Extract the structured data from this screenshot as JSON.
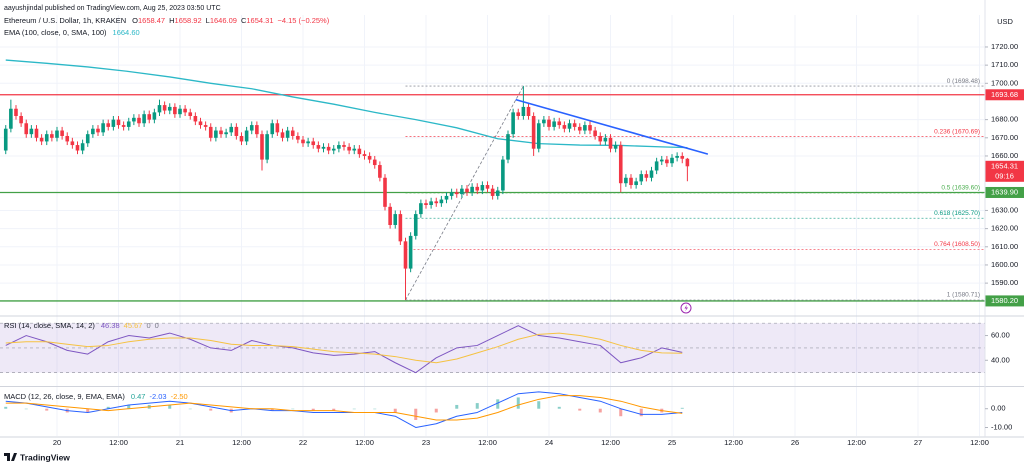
{
  "header": {
    "published": "aayushjindal published on TradingView.com, Aug 25, 2023 03:50 UTC",
    "symbol": "Ethereum / U.S. Dollar, 1h, KRAKEN",
    "ohlc_labels": [
      "O",
      "H",
      "L",
      "C"
    ],
    "change": "−4.15 (−0.25%)"
  },
  "footer": {
    "brand": "TradingView"
  },
  "chart_data": [
    {
      "type": "candlestick",
      "currency": "USD",
      "up_color": "#089981",
      "down_color": "#f23645",
      "grid": true,
      "xlim": [
        -11.12,
        181.07
      ],
      "ylim": [
        1572.45,
        1737.6
      ],
      "xticks": [
        {
          "value": 0,
          "label": "20"
        },
        {
          "value": 12,
          "label": "12:00"
        },
        {
          "value": 24,
          "label": "21"
        },
        {
          "value": 36,
          "label": "12:00"
        },
        {
          "value": 48,
          "label": "22"
        },
        {
          "value": 60,
          "label": "12:00"
        },
        {
          "value": 72,
          "label": "23"
        },
        {
          "value": 84,
          "label": "12:00"
        },
        {
          "value": 96,
          "label": "24"
        },
        {
          "value": 108,
          "label": "12:00"
        },
        {
          "value": 120,
          "label": "25"
        },
        {
          "value": 132,
          "label": "12:00"
        },
        {
          "value": 144,
          "label": "26"
        },
        {
          "value": 156,
          "label": "12:00"
        },
        {
          "value": 168,
          "label": "27"
        },
        {
          "value": 180,
          "label": "12:00"
        }
      ],
      "yticks": [
        {
          "value": 1720,
          "label": "1720.00"
        },
        {
          "value": 1710,
          "label": "1710.00"
        },
        {
          "value": 1700,
          "label": "1700.00"
        },
        {
          "value": 1680,
          "label": "1680.00"
        },
        {
          "value": 1670,
          "label": "1670.00"
        },
        {
          "value": 1660,
          "label": "1660.00"
        },
        {
          "value": 1630,
          "label": "1630.00"
        },
        {
          "value": 1620,
          "label": "1620.00"
        },
        {
          "value": 1610,
          "label": "1610.00"
        },
        {
          "value": 1600,
          "label": "1600.00"
        },
        {
          "value": 1590,
          "label": "1590.00"
        }
      ],
      "x": [
        -10,
        -9,
        -8,
        -7,
        -6,
        -5,
        -4,
        -3,
        -2,
        -1,
        0,
        1,
        2,
        3,
        4,
        5,
        6,
        7,
        8,
        9,
        10,
        11,
        12,
        13,
        14,
        15,
        16,
        17,
        18,
        19,
        20,
        21,
        22,
        23,
        24,
        25,
        26,
        27,
        28,
        29,
        30,
        31,
        32,
        33,
        34,
        35,
        36,
        37,
        38,
        39,
        40,
        41,
        42,
        43,
        44,
        45,
        46,
        47,
        48,
        49,
        50,
        51,
        52,
        53,
        54,
        55,
        56,
        57,
        58,
        59,
        60,
        61,
        62,
        63,
        64,
        65,
        66,
        67,
        68,
        69,
        70,
        71,
        72,
        73,
        74,
        75,
        76,
        77,
        78,
        79,
        80,
        81,
        82,
        83,
        84,
        85,
        86,
        87,
        88,
        89,
        90,
        91,
        92,
        93,
        94,
        95,
        96,
        97,
        98,
        99,
        100,
        101,
        102,
        103,
        104,
        105,
        106,
        107,
        108,
        109,
        110,
        111,
        112,
        113,
        114,
        115,
        116,
        117,
        118,
        119,
        120,
        121,
        122,
        123
      ],
      "open": [
        1663,
        1675,
        1686,
        1682,
        1678,
        1672,
        1675,
        1670,
        1668,
        1672,
        1670,
        1674,
        1671,
        1668,
        1666,
        1663,
        1667,
        1672,
        1675,
        1673,
        1678,
        1676,
        1680,
        1677,
        1676,
        1679,
        1681,
        1678,
        1683,
        1680,
        1684,
        1688,
        1685,
        1687,
        1683,
        1686,
        1684,
        1682,
        1679,
        1677,
        1676,
        1670,
        1674,
        1672,
        1673,
        1676,
        1671,
        1668,
        1674,
        1677,
        1672,
        1658,
        1672,
        1678,
        1673,
        1670,
        1674,
        1671,
        1669,
        1667,
        1668,
        1666,
        1664,
        1665,
        1663,
        1664,
        1666,
        1665,
        1663,
        1664,
        1661,
        1660,
        1658,
        1655,
        1648,
        1632,
        1622,
        1628,
        1613,
        1598,
        1616,
        1628,
        1634,
        1633,
        1635,
        1634,
        1636,
        1638,
        1640,
        1639,
        1642,
        1640,
        1643,
        1641,
        1644,
        1642,
        1638,
        1641,
        1658,
        1672,
        1684,
        1682,
        1687,
        1682,
        1664,
        1678,
        1680,
        1676,
        1679,
        1677,
        1675,
        1678,
        1676,
        1674,
        1677,
        1674,
        1671,
        1668,
        1670,
        1664,
        1666,
        1645,
        1648,
        1644,
        1646,
        1650,
        1648,
        1652,
        1657,
        1658,
        1656,
        1659,
        1660,
        1658.47
      ],
      "high": [
        1677,
        1691,
        1688,
        1684,
        1680,
        1677,
        1677,
        1672,
        1674,
        1674,
        1676,
        1676,
        1673,
        1670,
        1668,
        1669,
        1674,
        1677,
        1677,
        1680,
        1680,
        1682,
        1682,
        1679,
        1681,
        1683,
        1683,
        1685,
        1685,
        1686,
        1691,
        1690,
        1689,
        1689,
        1688,
        1688,
        1686,
        1684,
        1681,
        1679,
        1678,
        1676,
        1676,
        1675,
        1678,
        1678,
        1673,
        1676,
        1679,
        1679,
        1674,
        1674,
        1680,
        1680,
        1675,
        1676,
        1676,
        1673,
        1671,
        1670,
        1670,
        1668,
        1667,
        1667,
        1666,
        1668,
        1668,
        1667,
        1666,
        1666,
        1663,
        1662,
        1660,
        1657,
        1650,
        1634,
        1630,
        1630,
        1615,
        1618,
        1630,
        1636,
        1636,
        1637,
        1637,
        1638,
        1640,
        1642,
        1642,
        1644,
        1644,
        1645,
        1645,
        1646,
        1646,
        1644,
        1643,
        1660,
        1674,
        1686,
        1686,
        1698.48,
        1689,
        1684,
        1680,
        1682,
        1682,
        1681,
        1681,
        1679,
        1680,
        1680,
        1678,
        1679,
        1679,
        1676,
        1673,
        1672,
        1672,
        1668,
        1668,
        1650,
        1650,
        1648,
        1652,
        1652,
        1654,
        1659,
        1660,
        1660,
        1661,
        1662,
        1662,
        1658.92
      ],
      "low": [
        1661,
        1673,
        1680,
        1676,
        1670,
        1670,
        1668,
        1666,
        1666,
        1668,
        1668,
        1669,
        1666,
        1664,
        1661,
        1661,
        1665,
        1670,
        1671,
        1671,
        1674,
        1674,
        1675,
        1674,
        1674,
        1677,
        1676,
        1676,
        1678,
        1678,
        1682,
        1683,
        1683,
        1681,
        1681,
        1682,
        1680,
        1677,
        1675,
        1674,
        1668,
        1668,
        1670,
        1670,
        1671,
        1669,
        1666,
        1666,
        1672,
        1670,
        1652,
        1656,
        1670,
        1671,
        1668,
        1668,
        1669,
        1667,
        1665,
        1665,
        1664,
        1662,
        1662,
        1661,
        1661,
        1662,
        1663,
        1661,
        1661,
        1659,
        1658,
        1656,
        1653,
        1646,
        1630,
        1620,
        1620,
        1611,
        1580.71,
        1596,
        1614,
        1626,
        1631,
        1631,
        1632,
        1632,
        1634,
        1636,
        1637,
        1637,
        1638,
        1638,
        1639,
        1639,
        1640,
        1636,
        1636,
        1639,
        1656,
        1670,
        1680,
        1680,
        1680,
        1660,
        1662,
        1676,
        1674,
        1674,
        1675,
        1673,
        1673,
        1674,
        1672,
        1672,
        1672,
        1669,
        1666,
        1666,
        1662,
        1662,
        1640,
        1643,
        1642,
        1642,
        1644,
        1646,
        1646,
        1650,
        1655,
        1654,
        1654,
        1657,
        1656,
        1646.09
      ],
      "close": [
        1675,
        1686,
        1682,
        1678,
        1672,
        1675,
        1670,
        1668,
        1672,
        1670,
        1674,
        1671,
        1668,
        1666,
        1663,
        1667,
        1672,
        1675,
        1673,
        1678,
        1676,
        1680,
        1677,
        1676,
        1679,
        1681,
        1678,
        1683,
        1680,
        1684,
        1688,
        1685,
        1687,
        1683,
        1686,
        1684,
        1682,
        1679,
        1677,
        1676,
        1670,
        1674,
        1672,
        1673,
        1676,
        1671,
        1668,
        1674,
        1677,
        1672,
        1658,
        1672,
        1678,
        1673,
        1670,
        1674,
        1671,
        1669,
        1667,
        1668,
        1666,
        1664,
        1665,
        1663,
        1664,
        1666,
        1665,
        1663,
        1664,
        1661,
        1660,
        1658,
        1655,
        1648,
        1632,
        1622,
        1628,
        1613,
        1598,
        1616,
        1628,
        1634,
        1633,
        1635,
        1634,
        1636,
        1638,
        1640,
        1639,
        1642,
        1640,
        1643,
        1641,
        1644,
        1642,
        1638,
        1641,
        1658,
        1672,
        1684,
        1682,
        1687,
        1682,
        1664,
        1678,
        1680,
        1676,
        1679,
        1677,
        1675,
        1678,
        1676,
        1674,
        1677,
        1674,
        1671,
        1668,
        1670,
        1664,
        1666,
        1645,
        1648,
        1644,
        1646,
        1650,
        1648,
        1652,
        1657,
        1658,
        1656,
        1659,
        1660,
        1658.47,
        1654.31
      ],
      "last_label": "1654.31",
      "countdown": "09:16",
      "series": [
        {
          "name": "EMA (100, close, 0, SMA, 100)",
          "color": "#2cb8c7",
          "last_label": "1664.60",
          "x": [
            -10,
            -2,
            6,
            14,
            22,
            30,
            38,
            46,
            54,
            62,
            70,
            78,
            86,
            94,
            102,
            110,
            118,
            123
          ],
          "values": [
            1712.8,
            1711,
            1709,
            1706.5,
            1703.5,
            1700,
            1697,
            1692.5,
            1688.5,
            1684,
            1680,
            1675.5,
            1669.5,
            1666.8,
            1666,
            1665.8,
            1665,
            1664.6
          ]
        }
      ],
      "trendline": {
        "color": "#2962ff",
        "x": [
          89.5,
          127
        ],
        "values": [
          1691,
          1661
        ]
      },
      "levels": [
        {
          "value": 1693.68,
          "label": "1693.68",
          "color": "#f23645"
        },
        {
          "value": 1639.9,
          "label": "1639.90",
          "color": "#43a047"
        },
        {
          "value": 1580.2,
          "label": "1580.20",
          "color": "#43a047"
        }
      ],
      "fib": {
        "x": [
          68,
          91
        ],
        "levels": [
          {
            "value": 1698.48,
            "label": "0 (1698.48)",
            "color": "#787b86"
          },
          {
            "value": 1670.69,
            "label": "0.236 (1670.69)",
            "color": "#f23645"
          },
          {
            "value": 1639.6,
            "label": "0.5 (1639.60)",
            "color": "#4caf50"
          },
          {
            "value": 1625.7,
            "label": "0.618 (1625.70)",
            "color": "#089981"
          },
          {
            "value": 1608.5,
            "label": "0.764 (1608.50)",
            "color": "#f23645"
          },
          {
            "value": 1580.71,
            "label": "1 (1580.71)",
            "color": "#787b86"
          }
        ]
      }
    },
    {
      "type": "line",
      "title": "RSI (14, close, SMA, 14, 2)",
      "ylim": [
        20,
        74.2
      ],
      "yticks": [
        {
          "value": 60,
          "label": "60.00"
        },
        {
          "value": 40,
          "label": "40.00"
        }
      ],
      "band": [
        30,
        70
      ],
      "band_color": "rgba(126,87,194,0.13)",
      "levels": [
        70,
        50,
        30
      ],
      "x": [
        -10,
        -6,
        -2,
        2,
        6,
        10,
        14,
        18,
        22,
        26,
        30,
        34,
        38,
        42,
        46,
        50,
        54,
        58,
        62,
        66,
        70,
        74,
        78,
        82,
        86,
        90,
        94,
        98,
        102,
        106,
        110,
        114,
        118,
        122
      ],
      "series": [
        {
          "color": "#7e57c2",
          "values": [
            52,
            60,
            55,
            48,
            45,
            55,
            60,
            58,
            62,
            57,
            50,
            48,
            56,
            52,
            50,
            46,
            44,
            45,
            47,
            38,
            30,
            42,
            50,
            52,
            60,
            68,
            60,
            58,
            55,
            52,
            38,
            42,
            50,
            46.38
          ]
        },
        {
          "color": "#f5c242",
          "values": [
            54,
            55,
            55,
            53,
            51,
            52,
            55,
            57,
            58,
            58,
            56,
            53,
            52,
            52,
            51,
            49,
            47,
            46,
            45,
            43,
            40,
            38,
            41,
            46,
            51,
            57,
            61,
            62,
            60,
            57,
            52,
            48,
            46,
            45.67
          ]
        }
      ],
      "last_labels": [
        "46.38",
        "45.67"
      ],
      "extra_values": [
        0,
        0
      ]
    },
    {
      "type": "combo",
      "title": "MACD (12, 26, close, 9, EMA, EMA)",
      "ylim": [
        -14,
        10.5
      ],
      "yticks": [
        {
          "value": 0,
          "label": "0.00"
        },
        {
          "value": -10,
          "label": "-10.00"
        }
      ],
      "x": [
        -10,
        -6,
        -2,
        2,
        6,
        10,
        14,
        18,
        22,
        26,
        30,
        34,
        38,
        42,
        46,
        50,
        54,
        58,
        62,
        66,
        70,
        74,
        78,
        82,
        86,
        90,
        94,
        98,
        102,
        106,
        110,
        114,
        118,
        122
      ],
      "series": [
        {
          "type": "bar",
          "up_color": "#26a69a",
          "down_color": "#ef5350",
          "values": [
            1,
            0,
            -1,
            -2,
            -2,
            1,
            2,
            2,
            2,
            0,
            -1,
            -2,
            0,
            -1,
            0,
            -1,
            -1,
            0,
            0,
            -2,
            -6,
            -2,
            2,
            3,
            5,
            6,
            4,
            1,
            -1,
            -2,
            -4,
            -4,
            -2,
            0.47
          ]
        },
        {
          "type": "line",
          "color": "#2962ff",
          "values": [
            4,
            3,
            1,
            -1,
            -2,
            0,
            2,
            3,
            4,
            3,
            1,
            -1,
            0,
            -1,
            -1,
            -2,
            -2,
            -2,
            -2,
            -4,
            -10,
            -8,
            -4,
            -2,
            3,
            8,
            9,
            8,
            6,
            4,
            0,
            -3,
            -3,
            -2.03
          ]
        },
        {
          "type": "line",
          "color": "#ff9800",
          "values": [
            3,
            3,
            2,
            1,
            0,
            -1,
            0,
            1,
            2,
            3,
            2,
            1,
            0,
            0,
            -1,
            -1,
            -1,
            -2,
            -2,
            -2,
            -4,
            -6,
            -6,
            -5,
            -2,
            2,
            5,
            7,
            7,
            6,
            4,
            1,
            -1,
            -2.5
          ]
        }
      ],
      "last_labels": [
        "0.47",
        "-2.03",
        "-2.50"
      ]
    }
  ]
}
